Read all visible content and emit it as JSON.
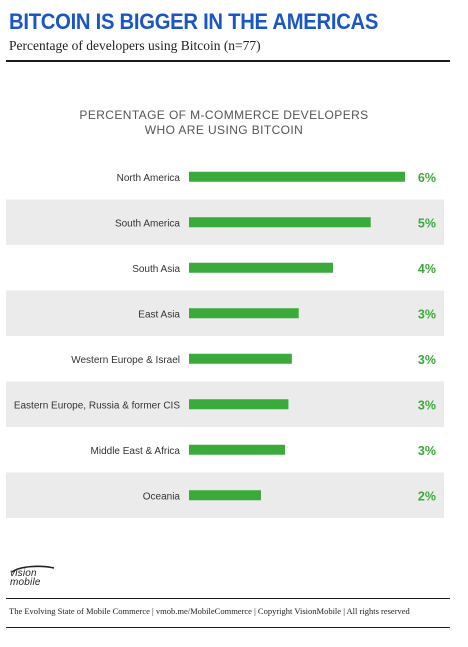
{
  "header": {
    "title": "BITCOIN IS BIGGER IN THE AMERICAS",
    "subtitle": "Percentage of developers using Bitcoin (n=77)"
  },
  "chart_data": {
    "type": "bar",
    "orientation": "horizontal",
    "title_line1": "PERCENTAGE OF M-COMMERCE DEVELOPERS",
    "title_line2": "WHO ARE USING BITCOIN",
    "categories": [
      "North America",
      "South America",
      "South Asia",
      "East Asia",
      "Western Europe & Israel",
      "Eastern Europe, Russia & former CIS",
      "Middle East & Africa",
      "Oceania"
    ],
    "values": [
      6.3,
      5.3,
      4.2,
      3.2,
      3.0,
      2.9,
      2.8,
      2.1
    ],
    "value_labels": [
      "6%",
      "5%",
      "4%",
      "3%",
      "3%",
      "3%",
      "3%",
      "2%"
    ],
    "xlim": [
      0,
      6.3
    ],
    "colors": {
      "bar": "#3aaa3a",
      "value_label": "#3aaa3a",
      "band": "#ebebeb"
    }
  },
  "logo": {
    "line1": "vision",
    "line2": "mobile"
  },
  "footer": {
    "text": "The Evolving State of Mobile Commerce | vmob.me/MobileCommerce | Copyright VisionMobile | All rights reserved"
  }
}
